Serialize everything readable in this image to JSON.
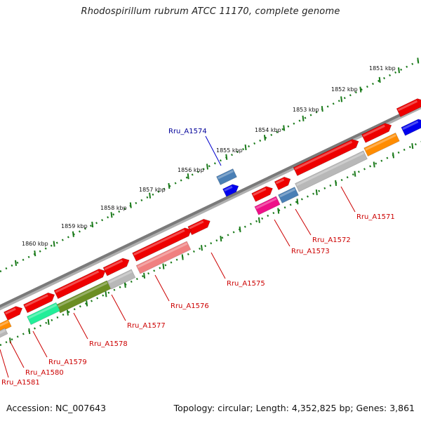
{
  "title": "Rhodospirillum rubrum ATCC 11170, complete genome",
  "footer": {
    "accession": "Accession: NC_007643",
    "summary": "Topology: circular; Length: 4,352,825 bp; Genes: 3,861"
  },
  "colors": {
    "backbone": "#808080",
    "scale_ticks": "#1a7a1a",
    "gene_label_red": "#cc0000",
    "gene_label_blue": "#000099"
  },
  "kbp_ticks": [
    {
      "label": "1851 kbp"
    },
    {
      "label": "1852 kbp"
    },
    {
      "label": "1853 kbp"
    },
    {
      "label": "1854 kbp"
    },
    {
      "label": "1855 kbp"
    },
    {
      "label": "1856 kbp"
    },
    {
      "label": "1857 kbp"
    },
    {
      "label": "1858 kbp"
    },
    {
      "label": "1859 kbp"
    },
    {
      "label": "1860 kbp"
    }
  ],
  "gene_labels": [
    {
      "label": "Rru_A1571"
    },
    {
      "label": "Rru_A1572"
    },
    {
      "label": "Rru_A1573"
    },
    {
      "label": "Rru_A1574"
    },
    {
      "label": "Rru_A1575"
    },
    {
      "label": "Rru_A1576"
    },
    {
      "label": "Rru_A1577"
    },
    {
      "label": "Rru_A1578"
    },
    {
      "label": "Rru_A1579"
    },
    {
      "label": "Rru_A1580"
    },
    {
      "label": "Rru_A1581"
    }
  ]
}
